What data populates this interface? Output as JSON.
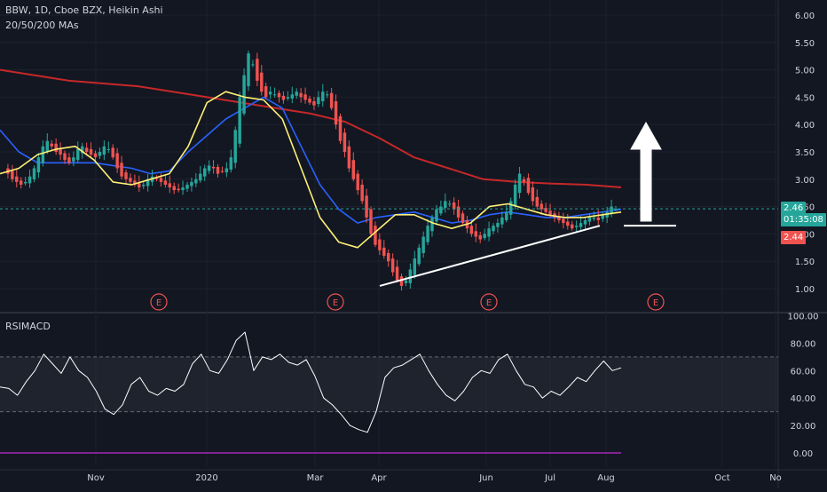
{
  "header": {
    "symbol_line": "BBW, 1D, Cboe BZX, Heikin Ashi",
    "ma_line": "20/50/200 MAs"
  },
  "indicator": {
    "label": "RSIMACD"
  },
  "price_labels": {
    "last_price": "2.46",
    "countdown": "01:35:08",
    "prev_price": "2.44"
  },
  "colors": {
    "background": "#131722",
    "grid": "#2a2e39",
    "up": "#26a69a",
    "down": "#ef5350",
    "ma20": "#fff176",
    "ma50": "#2962ff",
    "ma200": "#c62828",
    "last_line": "#26a69a",
    "rsi": "#ffffff",
    "earnings": "#ef5350",
    "text": "#d1d4dc"
  },
  "earnings_markers": [
    "E",
    "E",
    "E",
    "E"
  ],
  "chart_data": [
    {
      "type": "candlestick",
      "title": "BBW, 1D, Cboe BZX, Heikin Ashi",
      "x_ticks": [
        "Nov",
        "2020",
        "Mar",
        "Apr",
        "Jun",
        "Jul",
        "Aug",
        "Oct",
        "No"
      ],
      "y_ticks": [
        "1.00",
        "1.50",
        "2.00",
        "2.50",
        "3.00",
        "3.50",
        "4.00",
        "4.50",
        "5.00",
        "5.50",
        "6.00"
      ],
      "ylim": [
        0.8,
        6.2
      ],
      "price_path": [
        3.2,
        3.1,
        3.0,
        2.95,
        2.9,
        2.95,
        3.05,
        3.2,
        3.4,
        3.6,
        3.7,
        3.6,
        3.5,
        3.45,
        3.35,
        3.3,
        3.4,
        3.55,
        3.6,
        3.5,
        3.45,
        3.4,
        3.5,
        3.6,
        3.55,
        3.4,
        3.2,
        3.05,
        3.0,
        2.95,
        2.9,
        2.85,
        2.9,
        3.0,
        3.05,
        3.0,
        2.95,
        2.9,
        2.85,
        2.8,
        2.8,
        2.85,
        2.9,
        2.95,
        3.0,
        3.1,
        3.2,
        3.25,
        3.2,
        3.1,
        3.15,
        3.2,
        3.4,
        3.9,
        4.5,
        4.9,
        5.3,
        5.1,
        4.8,
        4.6,
        4.5,
        4.6,
        4.55,
        4.5,
        4.45,
        4.5,
        4.55,
        4.6,
        4.5,
        4.45,
        4.4,
        4.35,
        4.5,
        4.6,
        4.55,
        4.3,
        4.0,
        3.7,
        3.5,
        3.2,
        3.0,
        2.8,
        2.6,
        2.3,
        2.0,
        1.8,
        1.7,
        1.6,
        1.5,
        1.3,
        1.15,
        1.05,
        1.15,
        1.35,
        1.55,
        1.75,
        1.95,
        2.15,
        2.3,
        2.45,
        2.5,
        2.6,
        2.55,
        2.45,
        2.3,
        2.2,
        2.1,
        2.0,
        1.95,
        1.9,
        2.0,
        2.1,
        2.15,
        2.2,
        2.3,
        2.4,
        2.6,
        2.9,
        3.1,
        2.95,
        2.75,
        2.6,
        2.5,
        2.45,
        2.4,
        2.35,
        2.3,
        2.25,
        2.2,
        2.15,
        2.1,
        2.15,
        2.2,
        2.25,
        2.3,
        2.3,
        2.25,
        2.35,
        2.4,
        2.5,
        2.46
      ],
      "series": [
        {
          "name": "MA 20",
          "y": [
            3.1,
            3.2,
            3.45,
            3.55,
            3.6,
            3.35,
            2.95,
            2.9,
            3.0,
            3.1,
            3.6,
            4.4,
            4.6,
            4.5,
            4.45,
            4.1,
            3.2,
            2.3,
            1.85,
            1.75,
            2.05,
            2.35,
            2.35,
            2.2,
            2.1,
            2.2,
            2.5,
            2.55,
            2.45,
            2.35,
            2.3,
            2.3,
            2.35,
            2.4
          ]
        },
        {
          "name": "MA 50",
          "y": [
            3.9,
            3.5,
            3.3,
            3.3,
            3.3,
            3.3,
            3.25,
            3.2,
            3.1,
            3.15,
            3.5,
            3.8,
            4.1,
            4.3,
            4.5,
            4.3,
            3.6,
            2.9,
            2.45,
            2.2,
            2.3,
            2.35,
            2.4,
            2.3,
            2.2,
            2.25,
            2.35,
            2.4,
            2.35,
            2.3,
            2.3,
            2.35,
            2.4,
            2.45
          ]
        },
        {
          "name": "MA 200",
          "y": [
            5.0,
            4.9,
            4.8,
            4.75,
            4.7,
            4.6,
            4.5,
            4.4,
            4.3,
            4.2,
            4.05,
            3.75,
            3.4,
            3.2,
            3.0,
            2.95,
            2.92,
            2.9,
            2.85
          ]
        }
      ],
      "annotations": [
        {
          "type": "trendline",
          "from": [
            1.05,
            "Apr"
          ],
          "to": [
            2.15,
            "Aug"
          ]
        },
        {
          "type": "horizontal",
          "value": 2.15
        },
        {
          "type": "arrow",
          "direction": "up"
        }
      ],
      "last_price": 2.46
    },
    {
      "type": "line",
      "title": "RSIMACD",
      "y_ticks": [
        "0.00",
        "20.00",
        "40.00",
        "60.00",
        "80.00",
        "100.00"
      ],
      "ylim": [
        -3,
        103
      ],
      "bands": [
        30,
        70
      ],
      "series": [
        {
          "name": "RSI",
          "y": [
            48,
            47,
            42,
            52,
            60,
            72,
            65,
            58,
            70,
            60,
            55,
            45,
            32,
            28,
            35,
            50,
            55,
            45,
            42,
            47,
            45,
            50,
            65,
            72,
            60,
            58,
            68,
            82,
            88,
            60,
            70,
            68,
            72,
            66,
            64,
            68,
            56,
            40,
            35,
            28,
            20,
            17,
            15,
            30,
            55,
            62,
            64,
            68,
            72,
            60,
            50,
            42,
            38,
            45,
            55,
            60,
            58,
            68,
            72,
            60,
            50,
            48,
            40,
            45,
            42,
            48,
            55,
            52,
            60,
            67,
            60,
            62
          ]
        }
      ]
    }
  ]
}
